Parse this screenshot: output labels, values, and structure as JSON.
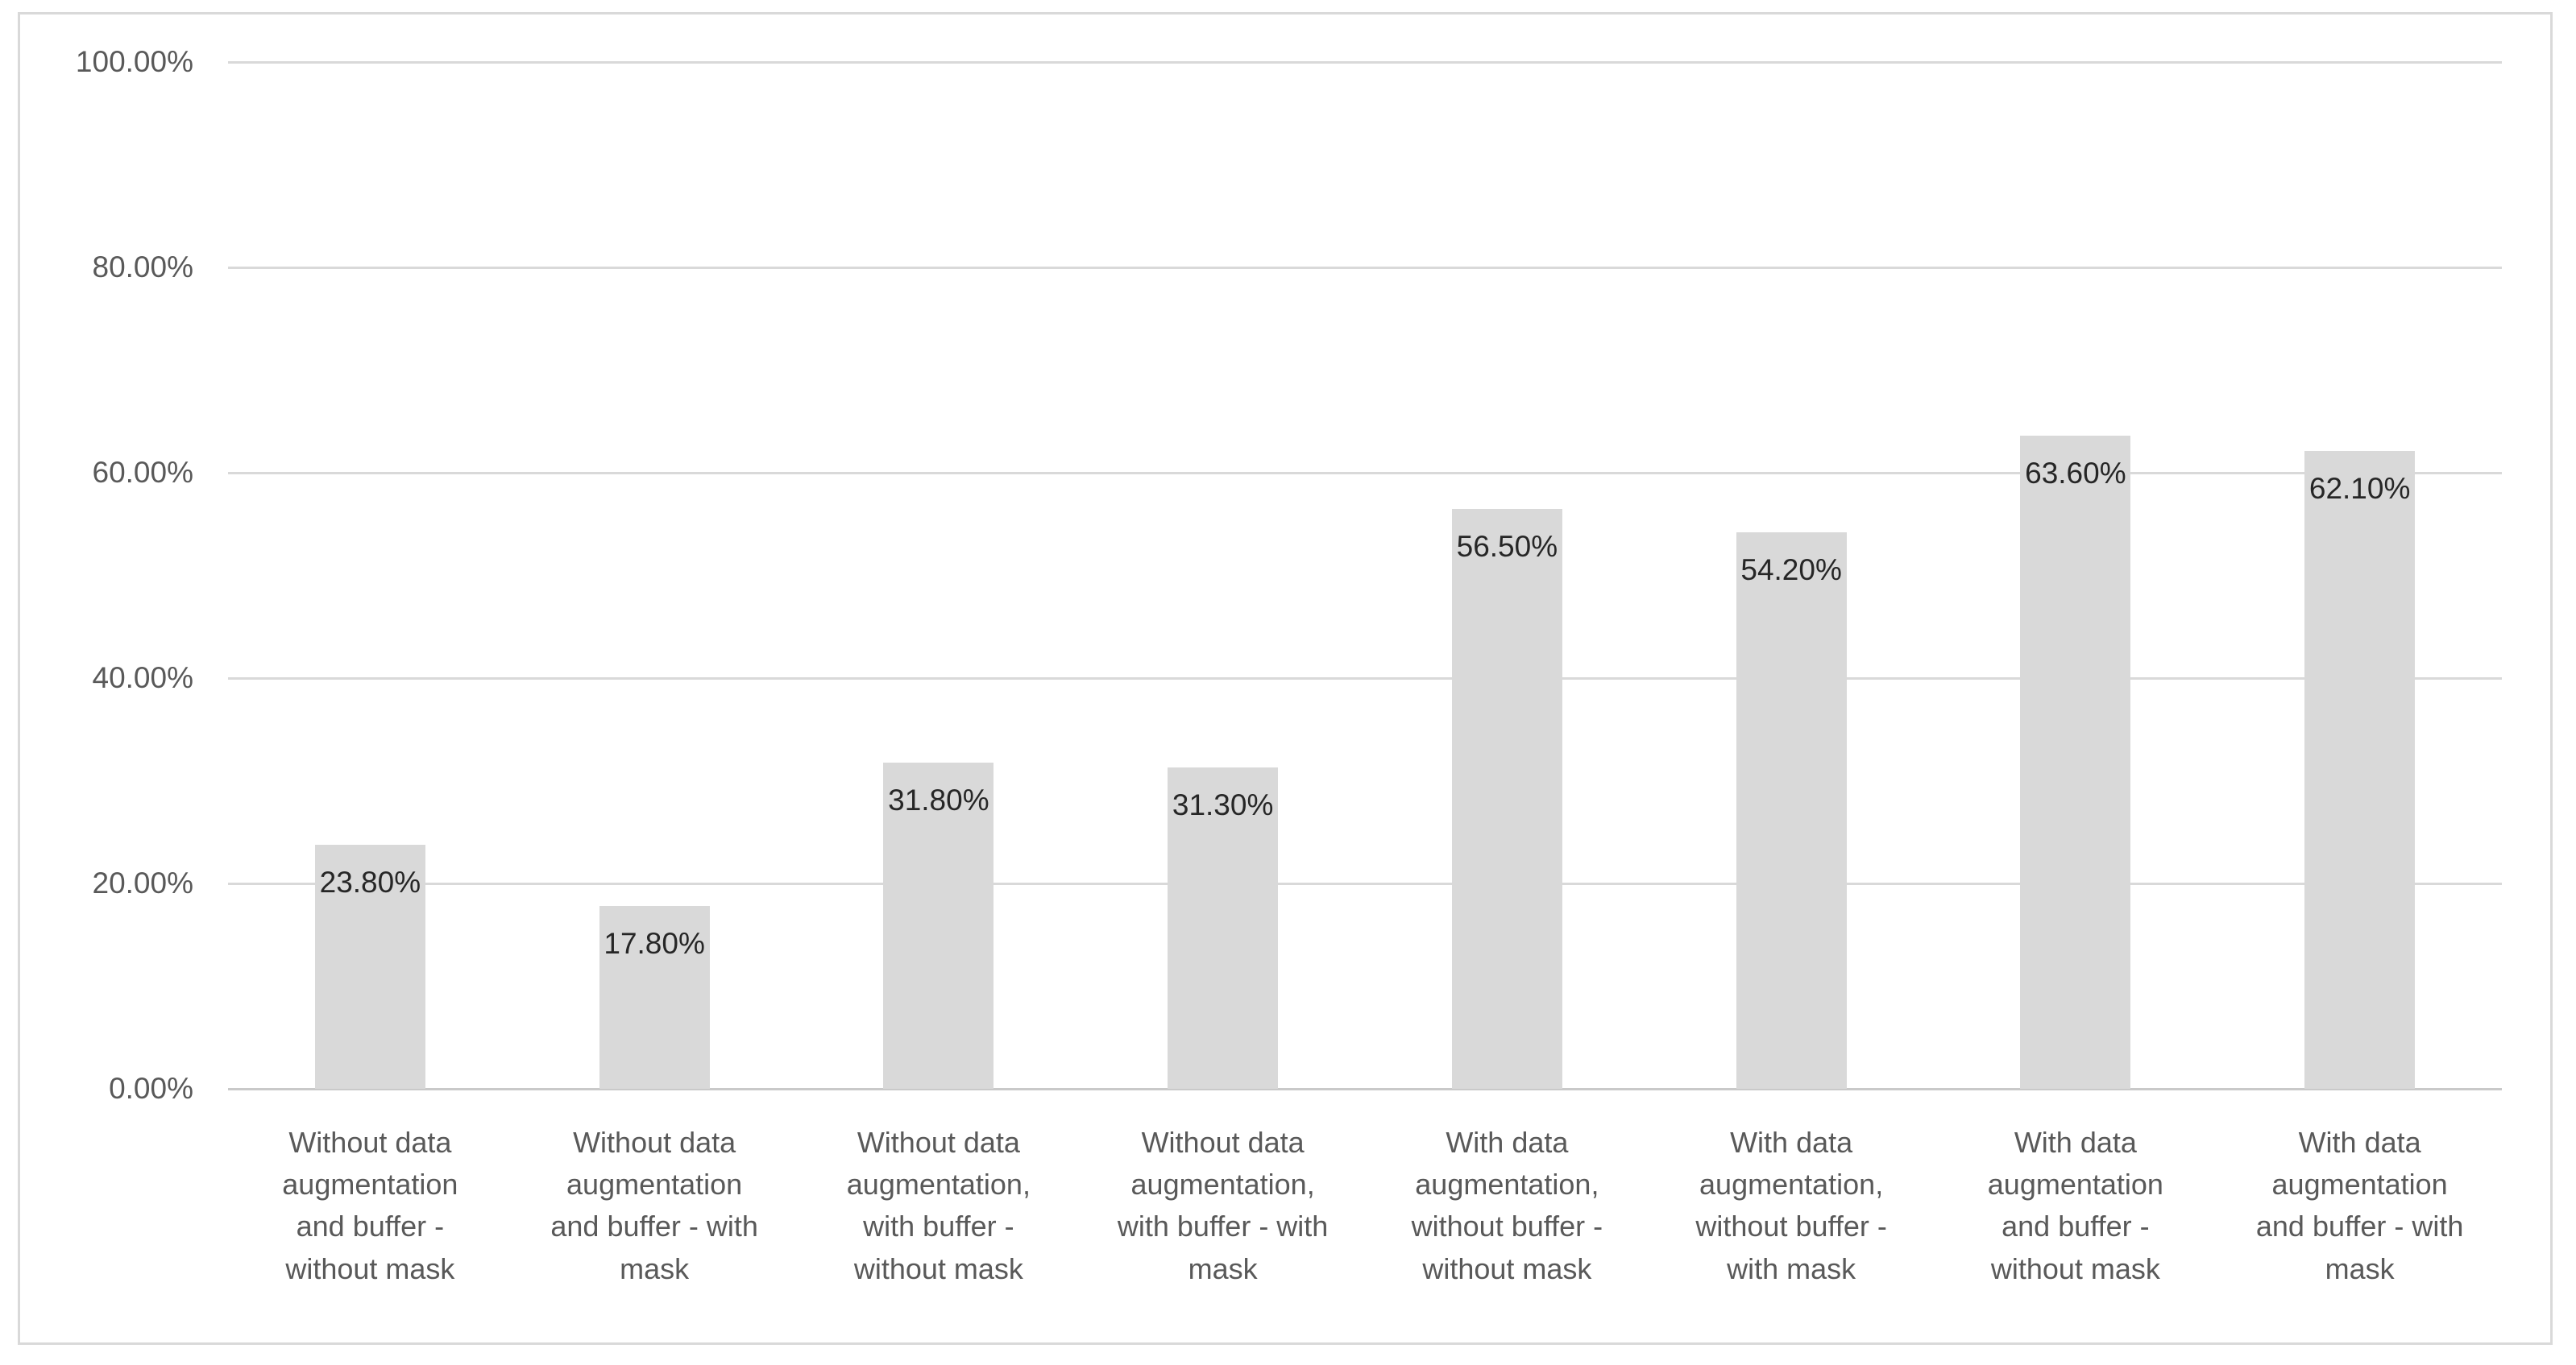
{
  "chart_data": {
    "type": "bar",
    "title": "",
    "xlabel": "",
    "ylabel": "",
    "ylim": [
      0,
      100
    ],
    "grid": true,
    "legend_position": "none",
    "y_ticks": [
      {
        "label": "100.00%",
        "value": 100
      },
      {
        "label": "80.00%",
        "value": 80
      },
      {
        "label": "60.00%",
        "value": 60
      },
      {
        "label": "40.00%",
        "value": 40
      },
      {
        "label": "20.00%",
        "value": 20
      },
      {
        "label": "0.00%",
        "value": 0
      }
    ],
    "categories": [
      "Without data augmentation and buffer - without mask",
      "Without data augmentation and buffer - with mask",
      "Without data augmentation, with buffer - without mask",
      "Without data augmentation, with buffer - with mask",
      "With data augmentation, without buffer - without mask",
      "With data augmentation, without buffer - with mask",
      "With data augmentation and buffer - without mask",
      "With data augmentation and buffer - with mask"
    ],
    "category_lines": [
      "Without data\naugmentation\nand buffer -\nwithout mask",
      "Without data\naugmentation\nand buffer - with\nmask",
      "Without data\naugmentation,\nwith buffer -\nwithout mask",
      "Without data\naugmentation,\nwith buffer - with\nmask",
      "With data\naugmentation,\nwithout buffer -\nwithout mask",
      "With data\naugmentation,\nwithout buffer -\nwith mask",
      "With data\naugmentation\nand buffer -\nwithout mask",
      "With data\naugmentation\nand buffer - with\nmask"
    ],
    "values": [
      23.8,
      17.8,
      31.8,
      31.3,
      56.5,
      54.2,
      63.6,
      62.1
    ],
    "value_labels": [
      "23.80%",
      "17.80%",
      "31.80%",
      "31.30%",
      "56.50%",
      "54.20%",
      "63.60%",
      "62.10%"
    ],
    "colors": {
      "bar_fill": "#d9d9d9",
      "gridline": "#d9d9d9",
      "frame_border": "#d9d9d9",
      "axis_text": "#595959",
      "value_label_text": "#262626",
      "background": "#ffffff"
    }
  }
}
